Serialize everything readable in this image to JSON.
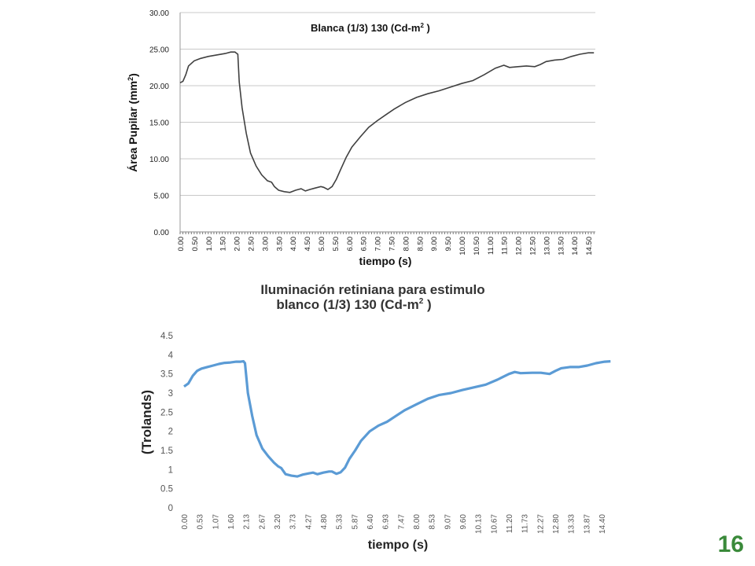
{
  "chart_data": [
    {
      "type": "line",
      "title": "Blanca  (1/3) 130 (Cd-m",
      "title_sup": "2",
      "title_end": " )",
      "ylabel": "Área Pupilar  (mm",
      "ylabel_sup": "2",
      "ylabel_end": ")",
      "xlabel": "tiempo (s)",
      "ylim": [
        0,
        30
      ],
      "yticks": [
        "0.00",
        "5.00",
        "10.00",
        "15.00",
        "20.00",
        "25.00",
        "30.00"
      ],
      "xticks": [
        "0.00",
        "0.50",
        "1.00",
        "1.50",
        "2.00",
        "2.50",
        "3.00",
        "3.50",
        "4.00",
        "4.50",
        "5.00",
        "5.50",
        "6.00",
        "6.50",
        "7.00",
        "7.50",
        "8.00",
        "8.50",
        "9.00",
        "9.50",
        "10.00",
        "10.50",
        "11.00",
        "11.50",
        "12.00",
        "12.50",
        "13.00",
        "13.50",
        "14.00",
        "14.50"
      ],
      "grid": "horizontal",
      "color": "#404040",
      "x": [
        0.0,
        0.1,
        0.2,
        0.3,
        0.5,
        0.7,
        1.0,
        1.3,
        1.6,
        1.8,
        1.95,
        2.05,
        2.1,
        2.2,
        2.35,
        2.5,
        2.7,
        2.9,
        3.1,
        3.25,
        3.35,
        3.5,
        3.7,
        3.9,
        4.1,
        4.3,
        4.45,
        4.6,
        4.8,
        5.0,
        5.1,
        5.25,
        5.4,
        5.55,
        5.7,
        5.9,
        6.1,
        6.4,
        6.7,
        7.0,
        7.3,
        7.6,
        8.0,
        8.4,
        8.8,
        9.2,
        9.6,
        10.0,
        10.4,
        10.8,
        11.2,
        11.5,
        11.7,
        12.0,
        12.3,
        12.6,
        12.8,
        13.0,
        13.3,
        13.6,
        13.9,
        14.2,
        14.5,
        14.7
      ],
      "y": [
        20.4,
        20.6,
        21.5,
        22.7,
        23.4,
        23.7,
        24.0,
        24.2,
        24.4,
        24.6,
        24.6,
        24.3,
        20.5,
        17.0,
        13.5,
        10.8,
        9.0,
        7.8,
        7.0,
        6.8,
        6.2,
        5.7,
        5.5,
        5.4,
        5.7,
        5.9,
        5.6,
        5.8,
        6.0,
        6.2,
        6.1,
        5.8,
        6.2,
        7.2,
        8.5,
        10.2,
        11.6,
        13.0,
        14.3,
        15.2,
        16.0,
        16.8,
        17.7,
        18.4,
        18.9,
        19.3,
        19.8,
        20.3,
        20.7,
        21.5,
        22.4,
        22.8,
        22.5,
        22.6,
        22.7,
        22.6,
        22.9,
        23.3,
        23.5,
        23.6,
        24.0,
        24.3,
        24.5,
        24.5
      ]
    },
    {
      "type": "line",
      "title": [
        "Iluminación retiniana para estimulo",
        "blanco    (1/3) 130 (Cd-m"
      ],
      "title_sup": "2",
      "title_end": " )",
      "ylabel": "(Trolands)",
      "xlabel": "tiempo (s)",
      "ylim": [
        0,
        4.5
      ],
      "yticks": [
        "0",
        "0.5",
        "1",
        "1.5",
        "2",
        "2.5",
        "3",
        "3.5",
        "4",
        "4.5"
      ],
      "xticks": [
        "0.00",
        "0.53",
        "1.07",
        "1.60",
        "2.13",
        "2.67",
        "3.20",
        "3.73",
        "4.27",
        "4.80",
        "5.33",
        "5.87",
        "6.40",
        "6.93",
        "7.47",
        "8.00",
        "8.53",
        "9.07",
        "9.60",
        "10.13",
        "10.67",
        "11.20",
        "11.73",
        "12.27",
        "12.80",
        "13.33",
        "13.87",
        "14.40"
      ],
      "grid": "none",
      "color": "#5b9bd5",
      "x": [
        0.0,
        0.15,
        0.3,
        0.45,
        0.6,
        0.8,
        1.0,
        1.2,
        1.4,
        1.6,
        1.8,
        1.95,
        2.05,
        2.1,
        2.2,
        2.35,
        2.5,
        2.7,
        2.9,
        3.1,
        3.25,
        3.35,
        3.5,
        3.7,
        3.9,
        4.1,
        4.3,
        4.45,
        4.6,
        4.8,
        5.0,
        5.1,
        5.25,
        5.4,
        5.55,
        5.7,
        5.9,
        6.1,
        6.4,
        6.7,
        7.0,
        7.3,
        7.6,
        8.0,
        8.4,
        8.8,
        9.2,
        9.6,
        10.0,
        10.4,
        10.8,
        11.2,
        11.4,
        11.6,
        12.0,
        12.3,
        12.6,
        12.8,
        13.0,
        13.3,
        13.6,
        13.9,
        14.2,
        14.5,
        14.7
      ],
      "y": [
        3.17,
        3.25,
        3.45,
        3.58,
        3.64,
        3.68,
        3.72,
        3.76,
        3.79,
        3.8,
        3.82,
        3.82,
        3.83,
        3.78,
        3.0,
        2.4,
        1.9,
        1.55,
        1.35,
        1.18,
        1.08,
        1.04,
        0.88,
        0.84,
        0.82,
        0.87,
        0.9,
        0.92,
        0.88,
        0.92,
        0.95,
        0.95,
        0.89,
        0.93,
        1.05,
        1.28,
        1.5,
        1.75,
        2.0,
        2.15,
        2.25,
        2.4,
        2.55,
        2.7,
        2.85,
        2.95,
        3.0,
        3.08,
        3.15,
        3.22,
        3.35,
        3.5,
        3.55,
        3.52,
        3.53,
        3.53,
        3.5,
        3.58,
        3.65,
        3.68,
        3.68,
        3.72,
        3.78,
        3.82,
        3.83
      ]
    }
  ],
  "page": {
    "slide_number": "16"
  }
}
